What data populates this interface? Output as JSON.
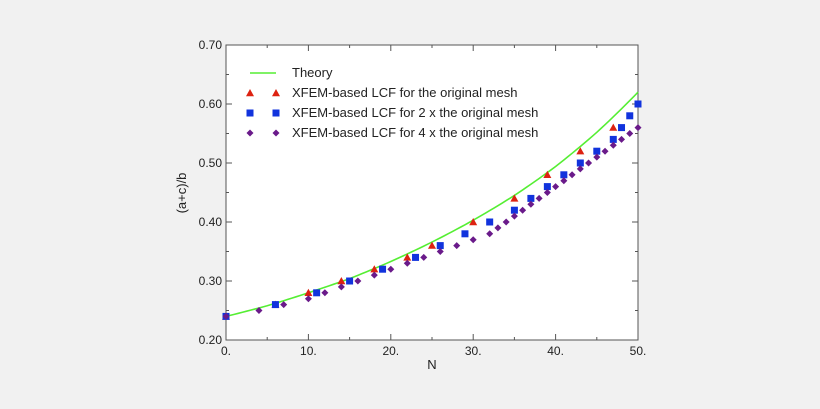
{
  "chart_data": {
    "type": "scatter",
    "xlabel": "N",
    "ylabel": "(a+c)/b",
    "xlim": [
      0,
      50
    ],
    "ylim": [
      0.2,
      0.7
    ],
    "xticks": [
      0,
      10,
      20,
      30,
      40,
      50
    ],
    "xtick_labels": [
      "0.",
      "10.",
      "20.",
      "30.",
      "40.",
      "50."
    ],
    "yticks": [
      0.2,
      0.3,
      0.4,
      0.5,
      0.6,
      0.7
    ],
    "ytick_labels": [
      "0.20",
      "0.30",
      "0.40",
      "0.50",
      "0.60",
      "0.70"
    ],
    "grid": false,
    "legend_position": "top-left",
    "series": [
      {
        "name": "Theory",
        "kind": "line",
        "color": "#55ee33",
        "x": [
          0,
          5,
          10,
          15,
          20,
          25,
          30,
          35,
          40,
          45,
          50
        ],
        "y": [
          0.24,
          0.258,
          0.28,
          0.304,
          0.333,
          0.366,
          0.403,
          0.445,
          0.494,
          0.552,
          0.62
        ]
      },
      {
        "name": "XFEM-based LCF for the original mesh",
        "kind": "marker",
        "marker": "triangle",
        "color": "#dd2211",
        "x": [
          0,
          6,
          10,
          14,
          18,
          22,
          25,
          30,
          35,
          39,
          43,
          47
        ],
        "y": [
          0.24,
          0.26,
          0.28,
          0.3,
          0.32,
          0.34,
          0.36,
          0.4,
          0.44,
          0.48,
          0.52,
          0.56
        ]
      },
      {
        "name": "XFEM-based LCF for 2 x the original mesh",
        "kind": "marker",
        "marker": "square",
        "color": "#1133dd",
        "x": [
          0,
          6,
          11,
          15,
          19,
          23,
          26,
          29,
          32,
          35,
          37,
          39,
          41,
          43,
          45,
          47,
          48,
          49,
          50
        ],
        "y": [
          0.24,
          0.26,
          0.28,
          0.3,
          0.32,
          0.34,
          0.36,
          0.38,
          0.4,
          0.42,
          0.44,
          0.46,
          0.48,
          0.5,
          0.52,
          0.54,
          0.56,
          0.58,
          0.6
        ]
      },
      {
        "name": "XFEM-based LCF for 4 x the original mesh",
        "kind": "marker",
        "marker": "diamond",
        "color": "#6a1a8a",
        "x": [
          0,
          4,
          7,
          10,
          12,
          14,
          16,
          18,
          20,
          22,
          24,
          26,
          28,
          30,
          32,
          33,
          34,
          35,
          36,
          37,
          38,
          39,
          40,
          41,
          42,
          43,
          44,
          45,
          46,
          47,
          48,
          49,
          50
        ],
        "y": [
          0.24,
          0.25,
          0.26,
          0.27,
          0.28,
          0.29,
          0.3,
          0.31,
          0.32,
          0.33,
          0.34,
          0.35,
          0.36,
          0.37,
          0.38,
          0.39,
          0.4,
          0.41,
          0.42,
          0.43,
          0.44,
          0.45,
          0.46,
          0.47,
          0.48,
          0.49,
          0.5,
          0.51,
          0.52,
          0.53,
          0.54,
          0.55,
          0.56
        ]
      }
    ]
  }
}
